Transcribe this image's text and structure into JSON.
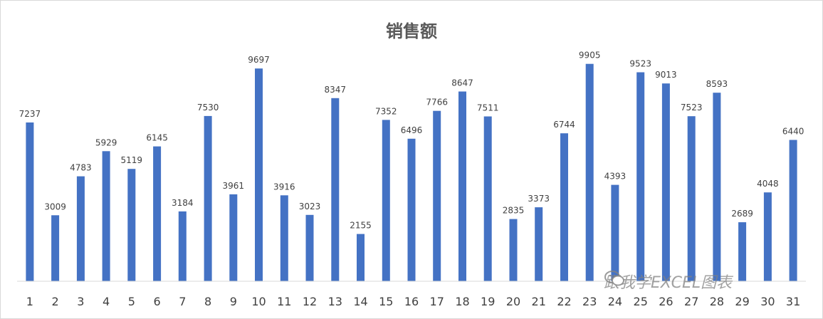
{
  "chart_data": {
    "type": "bar",
    "title": "销售额",
    "categories": [
      "1",
      "2",
      "3",
      "4",
      "5",
      "6",
      "7",
      "8",
      "9",
      "10",
      "11",
      "12",
      "13",
      "14",
      "15",
      "16",
      "17",
      "18",
      "19",
      "20",
      "21",
      "22",
      "23",
      "24",
      "25",
      "26",
      "27",
      "28",
      "29",
      "30",
      "31"
    ],
    "values": [
      7237,
      3009,
      4783,
      5929,
      5119,
      6145,
      3184,
      7530,
      3961,
      9697,
      3916,
      3023,
      8347,
      2155,
      7352,
      6496,
      7766,
      8647,
      7511,
      2835,
      3373,
      6744,
      9905,
      4393,
      9523,
      9013,
      7523,
      8593,
      2689,
      4048,
      6440
    ],
    "ylim": [
      0,
      11000
    ],
    "grid": false,
    "legend": "none",
    "bar_color": "#4472c4"
  },
  "watermark": {
    "text": "跟我学EXCEL图表",
    "icon": "wechat-icon"
  }
}
